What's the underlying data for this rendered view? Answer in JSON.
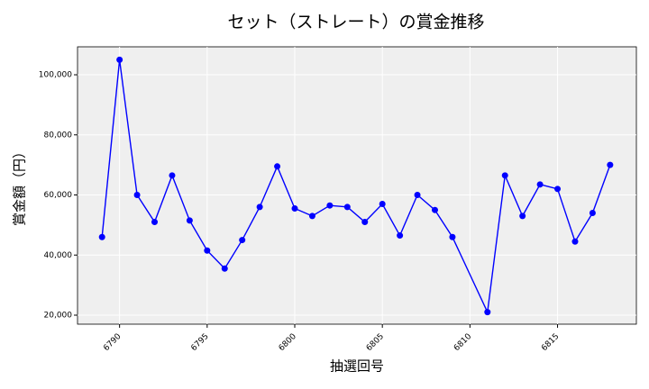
{
  "chart_data": {
    "type": "line",
    "title": "セット（ストレート）の賞金推移",
    "x_label": "抽選回号",
    "y_label": "賞金額（円）",
    "x": [
      6789,
      6790,
      6791,
      6792,
      6793,
      6794,
      6795,
      6796,
      6797,
      6798,
      6799,
      6800,
      6801,
      6802,
      6803,
      6804,
      6805,
      6806,
      6807,
      6808,
      6809,
      6811,
      6812,
      6813,
      6814,
      6815,
      6816,
      6817,
      6818
    ],
    "series": [
      {
        "color": "#0000ff",
        "values": [
          46000,
          105000,
          60000,
          51000,
          66500,
          51500,
          41500,
          35500,
          45000,
          56000,
          69500,
          55500,
          53000,
          56500,
          56000,
          51000,
          57000,
          46500,
          60000,
          55000,
          46000,
          21000,
          66500,
          53000,
          63500,
          62000,
          44500,
          54000,
          70000
        ]
      }
    ],
    "xlim": [
      6787.6,
      6819.5
    ],
    "ylim": [
      17000,
      109300
    ],
    "xticks": [
      6790,
      6795,
      6800,
      6805,
      6810,
      6815
    ],
    "yticks": [
      {
        "value": 20000,
        "label": "20,000"
      },
      {
        "value": 40000,
        "label": "40,000"
      },
      {
        "value": 60000,
        "label": "60,000"
      },
      {
        "value": 80000,
        "label": "80,000"
      },
      {
        "value": 100000,
        "label": "100,000"
      }
    ],
    "grid": true
  }
}
